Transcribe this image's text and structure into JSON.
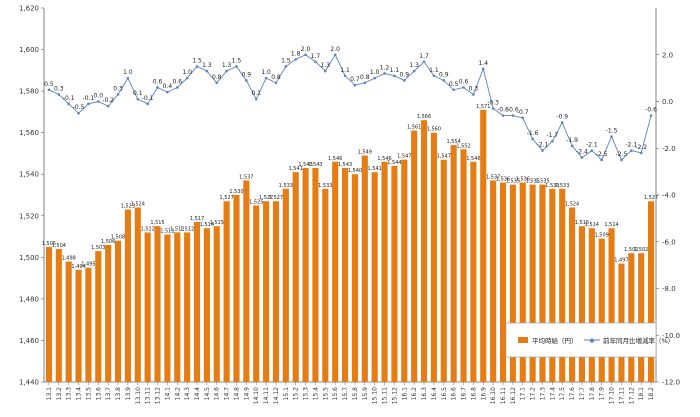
{
  "chart_data": {
    "type": "bar+line",
    "categories": [
      "13.1",
      "13.2",
      "13.3",
      "13.4",
      "13.5",
      "13.6",
      "13.7",
      "13.8",
      "13.9",
      "13.10",
      "13.11",
      "13.12",
      "14.1",
      "14.2",
      "14.3",
      "14.4",
      "14.5",
      "14.6",
      "14.7",
      "14.8",
      "14.9",
      "14.10",
      "14.11",
      "14.12",
      "15.1",
      "15.2",
      "15.3",
      "15.4",
      "15.5",
      "15.6",
      "15.7",
      "15.8",
      "15.9",
      "15.10",
      "15.11",
      "15.12",
      "16.1",
      "16.2",
      "16.3",
      "16.4",
      "16.5",
      "16.6",
      "16.7",
      "16.8",
      "16.9",
      "16.10",
      "16.11",
      "16.12",
      "17.1",
      "17.2",
      "17.3",
      "17.4",
      "17.5",
      "17.6",
      "17.7",
      "17.8",
      "17.9",
      "17.10",
      "17.11",
      "17.12",
      "18.1",
      "18.2"
    ],
    "series": [
      {
        "name": "平均時給（円）",
        "axis": "left",
        "type": "bar",
        "color": "#E57D14",
        "values": [
          1505,
          1504,
          1498,
          1494,
          1495,
          1503,
          1506,
          1508,
          1523,
          1524,
          1512,
          1515,
          1511,
          1512,
          1512,
          1517,
          1514,
          1515,
          1527,
          1530,
          1537,
          1525,
          1527,
          1527,
          1533,
          1541,
          1543,
          1543,
          1533,
          1546,
          1543,
          1540,
          1549,
          1541,
          1546,
          1544,
          1547,
          1561,
          1566,
          1560,
          1547,
          1554,
          1552,
          1546,
          1571,
          1537,
          1536,
          1535,
          1536,
          1535,
          1535,
          1533,
          1533,
          1524,
          1515,
          1514,
          1509,
          1514,
          1497,
          1502,
          1502,
          1527
        ]
      },
      {
        "name": "前年同月比増減率（%）",
        "axis": "right",
        "type": "line",
        "color": "#5B83C4",
        "values": [
          0.5,
          0.3,
          -0.1,
          -0.5,
          -0.1,
          0.0,
          -0.2,
          0.3,
          1.0,
          0.1,
          -0.1,
          0.6,
          0.4,
          0.6,
          1.0,
          1.5,
          1.3,
          0.8,
          1.3,
          1.5,
          0.9,
          0.1,
          1.0,
          0.8,
          1.5,
          1.8,
          2.0,
          1.7,
          1.3,
          2.0,
          1.1,
          0.7,
          0.8,
          1.0,
          1.2,
          1.1,
          0.9,
          1.3,
          1.7,
          1.1,
          0.9,
          0.5,
          0.6,
          0.3,
          1.4,
          -0.3,
          -0.6,
          -0.6,
          -0.7,
          -1.6,
          -2.1,
          -1.7,
          -0.9,
          -1.9,
          -2.4,
          -2.1,
          -2.5,
          -1.5,
          -2.5,
          -2.1,
          -2.2,
          -0.6
        ]
      }
    ],
    "bar_labels": [
      "1,505",
      "1,504",
      "1,498",
      "1,494",
      "1,495",
      "1,503",
      "1,506",
      "1,508",
      "1,523",
      "1,524",
      "1,512",
      "1,515",
      "1,511",
      "1,512",
      "1,512",
      "1,517",
      "1,514",
      "1,515",
      "1,527",
      "1,530",
      "1,537",
      "1,525",
      "1,527",
      "1,527",
      "1,533",
      "1,541",
      "1,543",
      "1,543",
      "1,533",
      "1,546",
      "1,543",
      "1,540",
      "1,549",
      "1,541",
      "1,546",
      "1,544",
      "1,547",
      "1,561",
      "1,566",
      "1,560",
      "1,547",
      "1,554",
      "1,552",
      "1,546",
      "1,571",
      "1,537",
      "1,536",
      "1,535",
      "1,536",
      "1,535",
      "1,535",
      "1,533",
      "1,533",
      "1,524",
      "1,515",
      "1,514",
      "1,509",
      "1,514",
      "1,497",
      "1,502",
      "1,502",
      "1,527"
    ],
    "line_labels": [
      "0.5",
      "0.3",
      "-0.1",
      "-0.5",
      "-0.1",
      "0.0",
      "-0.2",
      "0.3",
      "1.0",
      "0.1",
      "-0.1",
      "0.6",
      "0.4",
      "0.6",
      "1.0",
      "1.5",
      "1.3",
      "0.8",
      "1.3",
      "1.5",
      "0.9",
      "0.1",
      "1.0",
      "0.8",
      "1.5",
      "1.8",
      "2.0",
      "1.7",
      "1.3",
      "2.0",
      "1.1",
      "0.7",
      "0.8",
      "1.0",
      "1.2",
      "1.1",
      "0.9",
      "1.3",
      "1.7",
      "1.1",
      "0.9",
      "0.5",
      "0.6",
      "0.3",
      "1.4",
      "-0.3",
      "-0.6",
      "-0.6",
      "-0.7",
      "-1.6",
      "-2.1",
      "-1.7",
      "-0.9",
      "-1.9",
      "-2.4",
      "-2.1",
      "-2.5",
      "-1.5",
      "-2.5",
      "-2.1",
      "-2.2",
      "-0.6"
    ],
    "y_left": {
      "min": 1440,
      "max": 1620,
      "step": 20,
      "tick_labels": [
        "1,440",
        "1,460",
        "1,480",
        "1,500",
        "1,520",
        "1,540",
        "1,560",
        "1,580",
        "1,600",
        "1,620"
      ]
    },
    "y_right": {
      "min": -12.0,
      "max": 4.0,
      "step": 2,
      "tick_labels": [
        "-12.0",
        "-10.0",
        "-8.0",
        "-6.0",
        "-4.0",
        "-2.0",
        "0.0",
        "2.0"
      ]
    },
    "legend": {
      "position": "bottom-right",
      "bar_label": "平均時給（円）",
      "line_label": "前年同月比増減率（%）"
    },
    "grid": false,
    "title": "",
    "xlabel": "",
    "ylabel": ""
  }
}
